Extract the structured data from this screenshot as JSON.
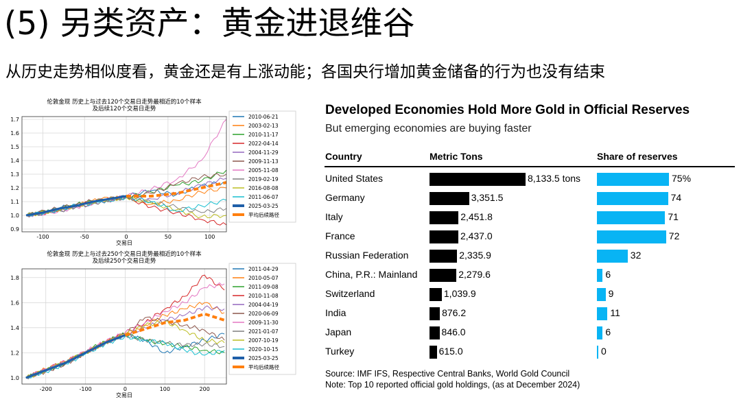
{
  "slide": {
    "title": "(5) 另类资产：黄金进退维谷",
    "subtitle": "从历史走势相似度看，黄金还是有上涨动能；各国央行增加黄金储备的行为也没有结束"
  },
  "colors": {
    "series": [
      "#1f77b4",
      "#ff7f0e",
      "#2ca02c",
      "#d62728",
      "#9467bd",
      "#8c564b",
      "#e377c2",
      "#7f7f7f",
      "#bcbd22",
      "#17becf"
    ],
    "highlight": "#1f5fa8",
    "average": "#ff7f0e",
    "share_bar": "#08b4f4"
  },
  "chart_data": [
    {
      "type": "line",
      "title": "伦敦金现 历史上与过去120个交易日走势最相近的10个样本\n及后续120个交易日走势",
      "xlabel": "交易日",
      "xlim": [
        -125,
        120
      ],
      "ylim": [
        0.88,
        1.72
      ],
      "xticks": [
        -100,
        -50,
        0,
        50,
        100
      ],
      "yticks": [
        0.9,
        1.0,
        1.1,
        1.2,
        1.3,
        1.4,
        1.5,
        1.6,
        1.7
      ],
      "ytick_labels": [
        "0.9",
        "1.0",
        "1.1",
        "1.2",
        "1.3",
        "1.4",
        "1.5",
        "1.6",
        "1.7"
      ],
      "grid": true,
      "legend_position": "right",
      "series": [
        {
          "name": "2010-06-21",
          "x": [
            -120,
            -90,
            -60,
            -30,
            0,
            30,
            60,
            90,
            120
          ],
          "y": [
            1.0,
            1.04,
            1.08,
            1.1,
            1.14,
            1.18,
            1.15,
            1.22,
            1.24
          ]
        },
        {
          "name": "2003-02-13",
          "x": [
            -120,
            -90,
            -60,
            -30,
            0,
            30,
            60,
            90,
            120
          ],
          "y": [
            1.0,
            1.03,
            1.07,
            1.12,
            1.13,
            1.08,
            1.11,
            1.17,
            1.2
          ]
        },
        {
          "name": "2010-11-17",
          "x": [
            -120,
            -90,
            -60,
            -30,
            0,
            30,
            60,
            90,
            120
          ],
          "y": [
            1.0,
            1.03,
            1.08,
            1.11,
            1.13,
            1.17,
            1.22,
            1.25,
            1.33
          ]
        },
        {
          "name": "2022-04-14",
          "x": [
            -120,
            -90,
            -60,
            -30,
            0,
            30,
            60,
            90,
            120
          ],
          "y": [
            1.0,
            1.03,
            1.07,
            1.11,
            1.13,
            1.06,
            1.02,
            0.97,
            0.93
          ]
        },
        {
          "name": "2004-11-29",
          "x": [
            -120,
            -90,
            -60,
            -30,
            0,
            30,
            60,
            90,
            120
          ],
          "y": [
            1.0,
            1.02,
            1.06,
            1.1,
            1.13,
            1.12,
            1.16,
            1.22,
            1.27
          ]
        },
        {
          "name": "2009-11-13",
          "x": [
            -120,
            -90,
            -60,
            -30,
            0,
            30,
            60,
            90,
            120
          ],
          "y": [
            1.0,
            1.04,
            1.08,
            1.12,
            1.13,
            1.16,
            1.23,
            1.28,
            1.3
          ]
        },
        {
          "name": "2005-11-08",
          "x": [
            -120,
            -90,
            -60,
            -30,
            0,
            30,
            60,
            90,
            120
          ],
          "y": [
            1.0,
            1.02,
            1.06,
            1.1,
            1.14,
            1.19,
            1.26,
            1.4,
            1.7
          ]
        },
        {
          "name": "2019-02-19",
          "x": [
            -120,
            -90,
            -60,
            -30,
            0,
            30,
            60,
            90,
            120
          ],
          "y": [
            1.0,
            1.02,
            1.06,
            1.1,
            1.13,
            1.1,
            1.06,
            1.02,
            1.05
          ]
        },
        {
          "name": "2016-08-08",
          "x": [
            -120,
            -90,
            -60,
            -30,
            0,
            30,
            60,
            90,
            120
          ],
          "y": [
            1.0,
            1.03,
            1.07,
            1.11,
            1.13,
            1.09,
            1.04,
            0.99,
            1.0
          ]
        },
        {
          "name": "2011-06-07",
          "x": [
            -120,
            -90,
            -60,
            -30,
            0,
            30,
            60,
            90,
            120
          ],
          "y": [
            1.0,
            1.03,
            1.07,
            1.1,
            1.13,
            1.1,
            1.03,
            1.07,
            1.11
          ]
        },
        {
          "name": "2025-03-25",
          "x": [
            -120,
            -100,
            -80,
            -60,
            -40,
            -20,
            0
          ],
          "y": [
            1.0,
            1.02,
            1.05,
            1.07,
            1.1,
            1.12,
            1.14
          ],
          "highlight": true
        },
        {
          "name": "平均后续路径",
          "x": [
            0,
            30,
            60,
            90,
            120
          ],
          "y": [
            1.14,
            1.14,
            1.16,
            1.2,
            1.24
          ],
          "dashed": true
        }
      ]
    },
    {
      "type": "line",
      "title": "伦敦金现 历史上与过去250个交易日走势最相近的10个样本\n及后续250个交易日走势",
      "xlabel": "交易日",
      "xlim": [
        -260,
        255
      ],
      "ylim": [
        0.95,
        1.87
      ],
      "xticks": [
        -200,
        -100,
        0,
        100,
        200
      ],
      "yticks": [
        1.0,
        1.2,
        1.4,
        1.6,
        1.8
      ],
      "ytick_labels": [
        "1.0",
        "1.2",
        "1.4",
        "1.6",
        "1.8"
      ],
      "grid": true,
      "legend_position": "right",
      "series": [
        {
          "name": "2011-04-29",
          "x": [
            -250,
            -200,
            -150,
            -100,
            -50,
            0,
            50,
            100,
            150,
            200,
            250
          ],
          "y": [
            1.0,
            1.06,
            1.12,
            1.2,
            1.28,
            1.35,
            1.3,
            1.2,
            1.25,
            1.3,
            1.35
          ]
        },
        {
          "name": "2010-05-07",
          "x": [
            -250,
            -200,
            -150,
            -100,
            -50,
            0,
            50,
            100,
            150,
            200,
            250
          ],
          "y": [
            1.0,
            1.07,
            1.13,
            1.2,
            1.28,
            1.35,
            1.42,
            1.5,
            1.55,
            1.6,
            1.52
          ]
        },
        {
          "name": "2011-09-08",
          "x": [
            -250,
            -200,
            -150,
            -100,
            -50,
            0,
            50,
            100,
            150,
            200,
            250
          ],
          "y": [
            1.0,
            1.06,
            1.12,
            1.21,
            1.29,
            1.35,
            1.3,
            1.27,
            1.25,
            1.22,
            1.2
          ]
        },
        {
          "name": "2010-11-08",
          "x": [
            -250,
            -200,
            -150,
            -100,
            -50,
            0,
            50,
            100,
            150,
            200,
            250
          ],
          "y": [
            1.0,
            1.07,
            1.13,
            1.2,
            1.28,
            1.36,
            1.44,
            1.55,
            1.65,
            1.82,
            1.7
          ]
        },
        {
          "name": "2004-04-19",
          "x": [
            -250,
            -200,
            -150,
            -100,
            -50,
            0,
            50,
            100,
            150,
            200,
            250
          ],
          "y": [
            1.0,
            1.06,
            1.12,
            1.2,
            1.28,
            1.34,
            1.4,
            1.46,
            1.5,
            1.56,
            1.55
          ]
        },
        {
          "name": "2020-06-09",
          "x": [
            -250,
            -200,
            -150,
            -100,
            -50,
            0,
            50,
            100,
            150,
            200,
            250
          ],
          "y": [
            1.0,
            1.05,
            1.11,
            1.2,
            1.28,
            1.35,
            1.48,
            1.45,
            1.42,
            1.38,
            1.3
          ]
        },
        {
          "name": "2009-11-30",
          "x": [
            -250,
            -200,
            -150,
            -100,
            -50,
            0,
            50,
            100,
            150,
            200,
            250
          ],
          "y": [
            1.0,
            1.07,
            1.13,
            1.21,
            1.29,
            1.36,
            1.44,
            1.53,
            1.6,
            1.72,
            1.75
          ]
        },
        {
          "name": "2021-01-07",
          "x": [
            -250,
            -200,
            -150,
            -100,
            -50,
            0,
            50,
            100,
            150,
            200,
            250
          ],
          "y": [
            1.0,
            1.06,
            1.12,
            1.2,
            1.28,
            1.34,
            1.3,
            1.28,
            1.26,
            1.27,
            1.25
          ]
        },
        {
          "name": "2007-10-19",
          "x": [
            -250,
            -200,
            -150,
            -100,
            -50,
            0,
            50,
            100,
            150,
            200,
            250
          ],
          "y": [
            1.0,
            1.06,
            1.13,
            1.2,
            1.28,
            1.35,
            1.42,
            1.45,
            1.38,
            1.3,
            1.28
          ]
        },
        {
          "name": "2020-10-15",
          "x": [
            -250,
            -200,
            -150,
            -100,
            -50,
            0,
            50,
            100,
            150,
            200,
            250
          ],
          "y": [
            1.0,
            1.05,
            1.11,
            1.19,
            1.27,
            1.33,
            1.3,
            1.28,
            1.22,
            1.18,
            1.22
          ]
        },
        {
          "name": "2025-03-25",
          "x": [
            -250,
            -200,
            -150,
            -100,
            -50,
            0
          ],
          "y": [
            1.0,
            1.06,
            1.12,
            1.2,
            1.28,
            1.34
          ],
          "highlight": true
        },
        {
          "name": "平均后续路径",
          "x": [
            0,
            50,
            100,
            150,
            200,
            250
          ],
          "y": [
            1.34,
            1.39,
            1.44,
            1.46,
            1.51,
            1.46
          ],
          "dashed": true
        }
      ]
    },
    {
      "type": "table",
      "title": "Developed Economies Hold More Gold in Official Reserves",
      "subtitle": "But emerging economies are buying faster",
      "columns": [
        "Country",
        "Metric Tons",
        "Share of reserves"
      ],
      "rows": [
        {
          "country": "United States",
          "tons": 8133.5,
          "tons_label": "8,133.5 tons",
          "share": 75,
          "share_label": "75%"
        },
        {
          "country": "Germany",
          "tons": 3351.5,
          "tons_label": "3,351.5",
          "share": 74,
          "share_label": "74"
        },
        {
          "country": "Italy",
          "tons": 2451.8,
          "tons_label": "2,451.8",
          "share": 71,
          "share_label": "71"
        },
        {
          "country": "France",
          "tons": 2437.0,
          "tons_label": "2,437.0",
          "share": 72,
          "share_label": "72"
        },
        {
          "country": "Russian Federation",
          "tons": 2335.9,
          "tons_label": "2,335.9",
          "share": 32,
          "share_label": "32"
        },
        {
          "country": "China, P.R.: Mainland",
          "tons": 2279.6,
          "tons_label": "2,279.6",
          "share": 6,
          "share_label": "6"
        },
        {
          "country": "Switzerland",
          "tons": 1039.9,
          "tons_label": "1,039.9",
          "share": 9,
          "share_label": "9"
        },
        {
          "country": "India",
          "tons": 876.2,
          "tons_label": "876.2",
          "share": 11,
          "share_label": "11"
        },
        {
          "country": "Japan",
          "tons": 846.0,
          "tons_label": "846.0",
          "share": 6,
          "share_label": "6"
        },
        {
          "country": "Turkey",
          "tons": 615.0,
          "tons_label": "615.0",
          "share": 0,
          "share_label": "0"
        }
      ],
      "source": "Source: IMF IFS, Respective Central Banks, World Gold Council",
      "note": "Note: Top 10 reported official gold holdings, (as at December 2024)"
    }
  ]
}
